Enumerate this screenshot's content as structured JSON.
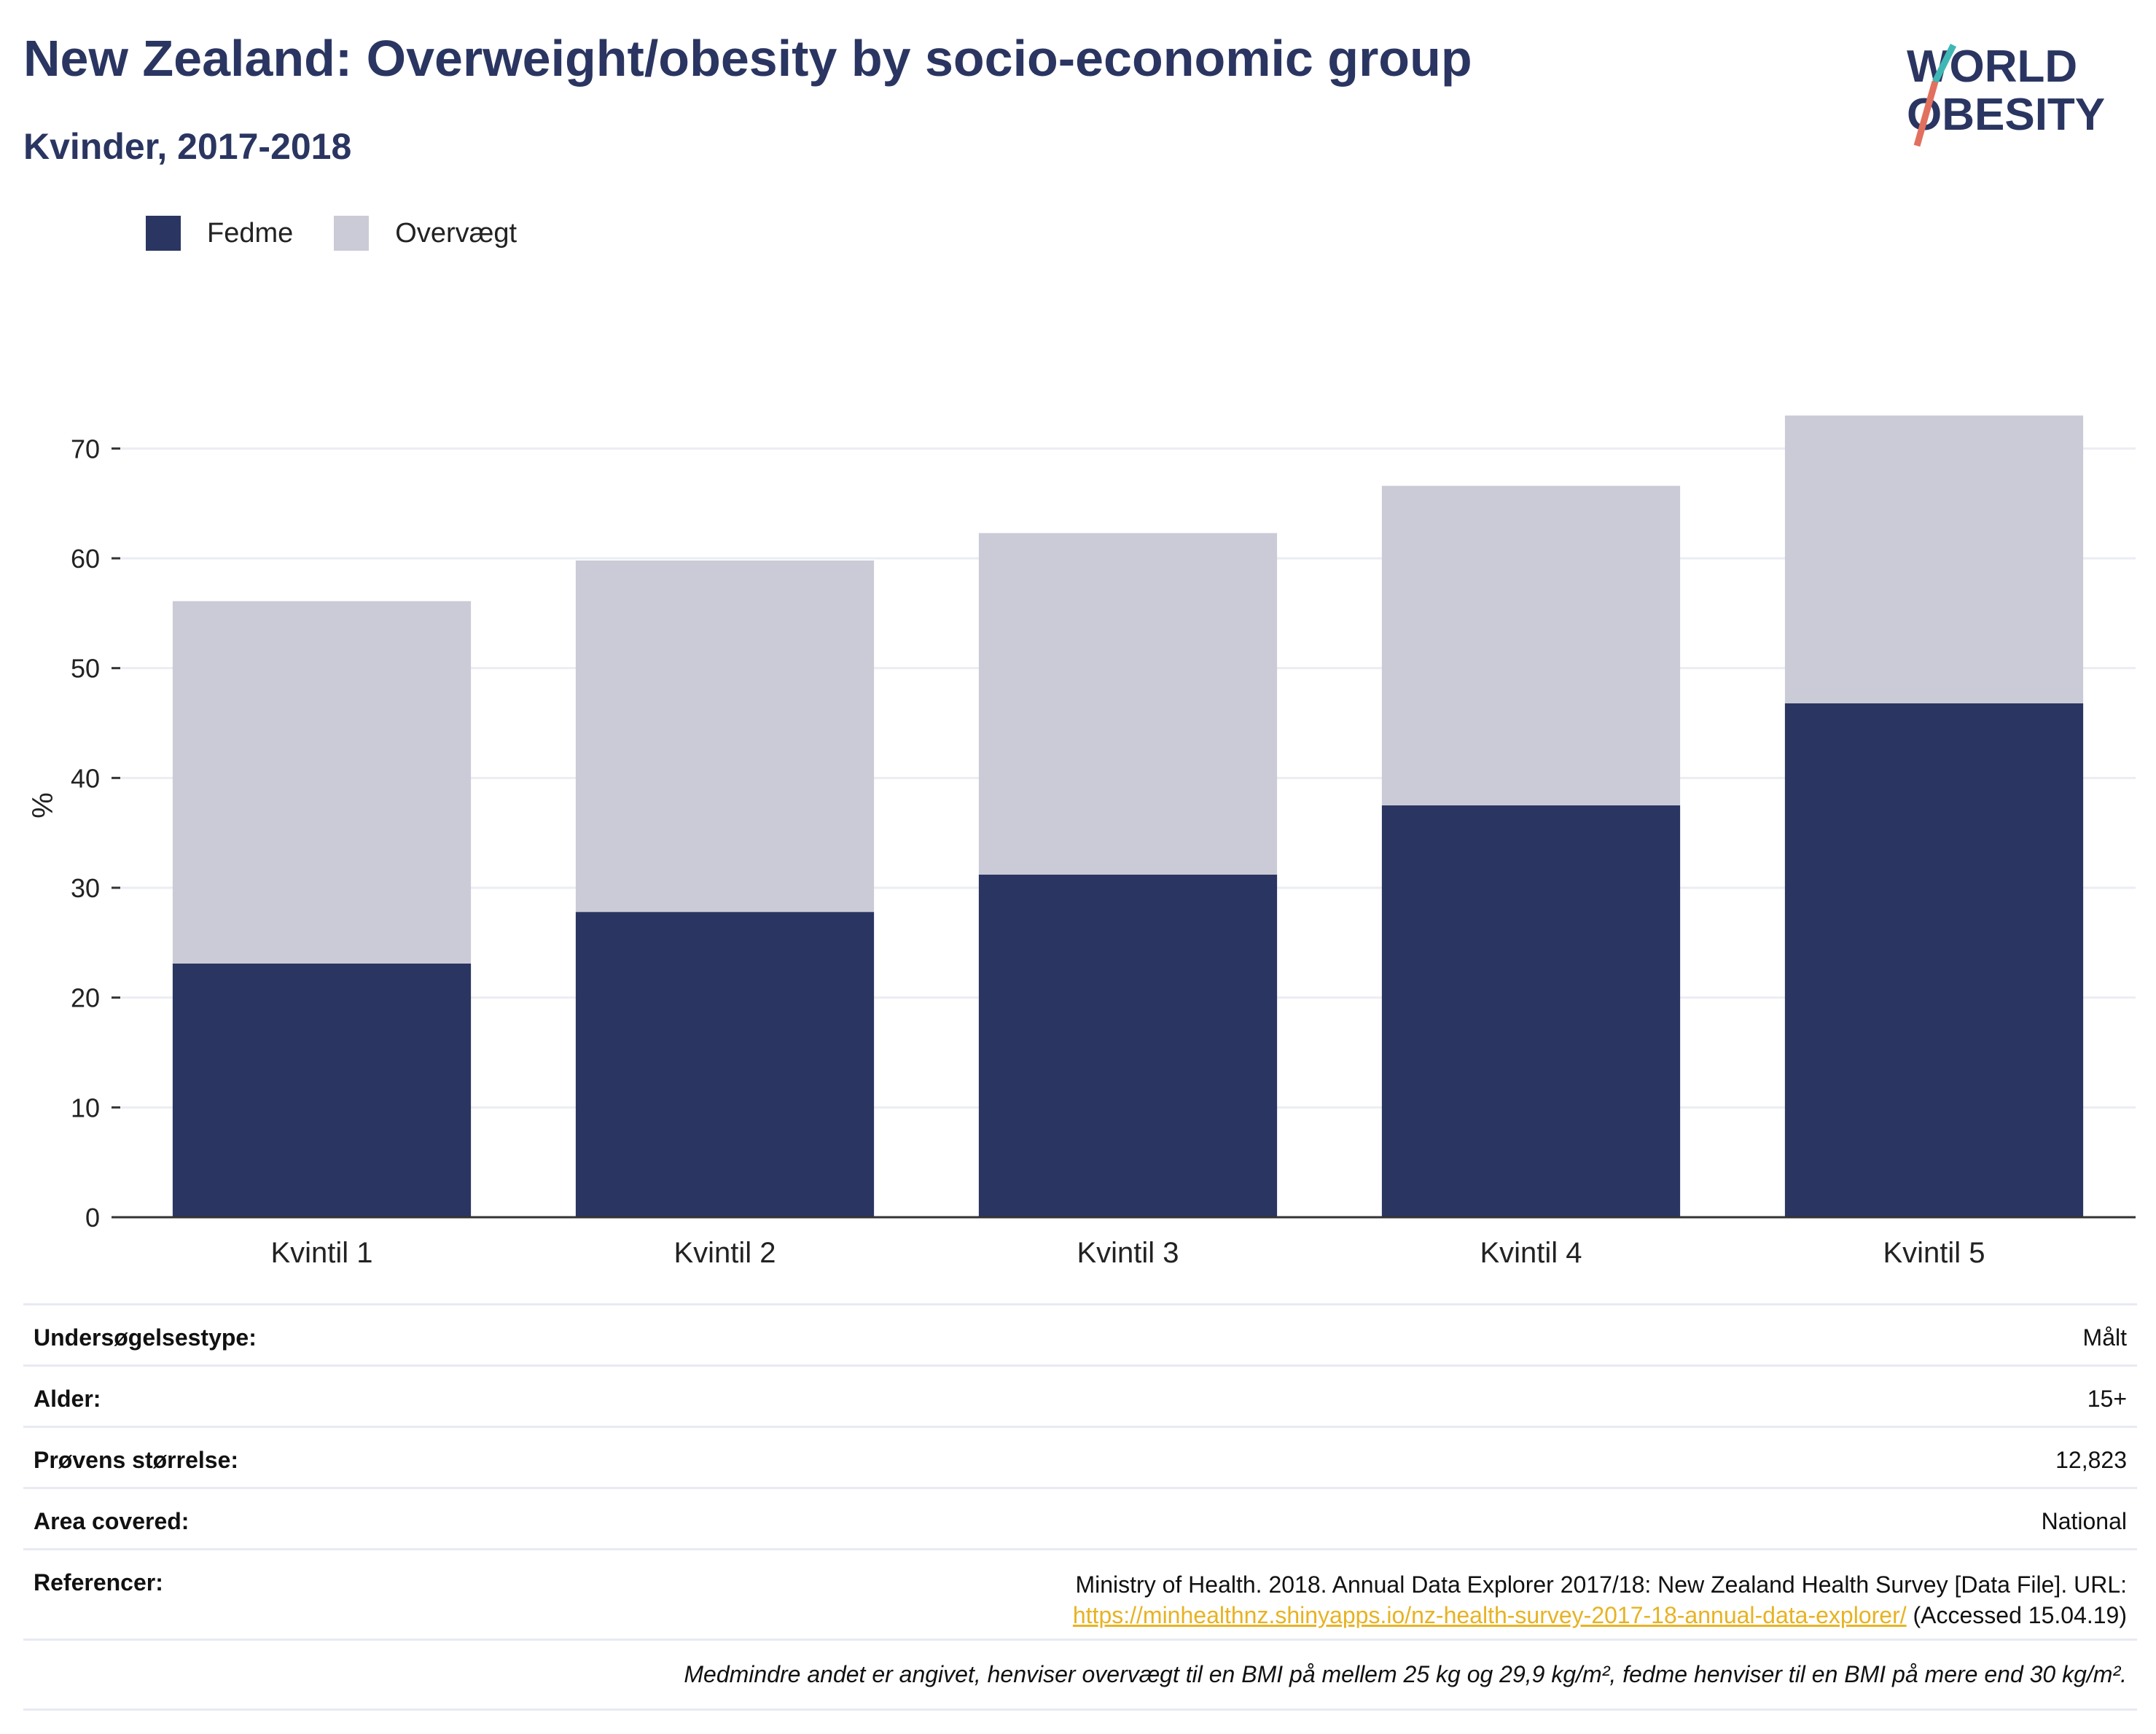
{
  "header": {
    "title": "New Zealand: Overweight/obesity by socio-economic group",
    "subtitle": "Kvinder, 2017-2018"
  },
  "logo": {
    "line1": "WORLD",
    "line2": "OBESITY"
  },
  "colors": {
    "fedme": "#2a3561",
    "overvaegt": "#cacbd6",
    "title": "#2a3561",
    "link": "#e7b323"
  },
  "chart_data": {
    "type": "bar",
    "stacked": true,
    "categories": [
      "Kvintil 1",
      "Kvintil 2",
      "Kvintil 3",
      "Kvintil 4",
      "Kvintil 5"
    ],
    "series": [
      {
        "name": "Fedme",
        "values": [
          23.1,
          27.8,
          31.2,
          37.5,
          46.8
        ]
      },
      {
        "name": "Overvægt",
        "values": [
          33.0,
          32.0,
          31.1,
          29.1,
          26.2
        ]
      }
    ],
    "ylabel": "%",
    "ylim": [
      0,
      75
    ],
    "yticks": [
      0,
      10,
      20,
      30,
      40,
      50,
      60,
      70
    ],
    "grid": true,
    "legend": "top-left"
  },
  "info": [
    {
      "key": "Undersøgelsestype:",
      "value": "Målt"
    },
    {
      "key": "Alder:",
      "value": "15+"
    },
    {
      "key": "Prøvens størrelse:",
      "value": "12,823"
    },
    {
      "key": "Area covered:",
      "value": "National"
    }
  ],
  "reference": {
    "key": "Referencer:",
    "text": "Ministry of Health. 2018. Annual Data Explorer 2017/18: New Zealand Health Survey [Data File]. URL:",
    "link": "https://minhealthnz.shinyapps.io/nz-health-survey-2017-18-annual-data-explorer/",
    "accessed": "(Accessed 15.04.19)"
  },
  "note": "Medmindre andet er angivet, henviser overvægt til en BMI på mellem 25 kg og 29,9 kg/m², fedme henviser til en BMI på mere end 30 kg/m²."
}
